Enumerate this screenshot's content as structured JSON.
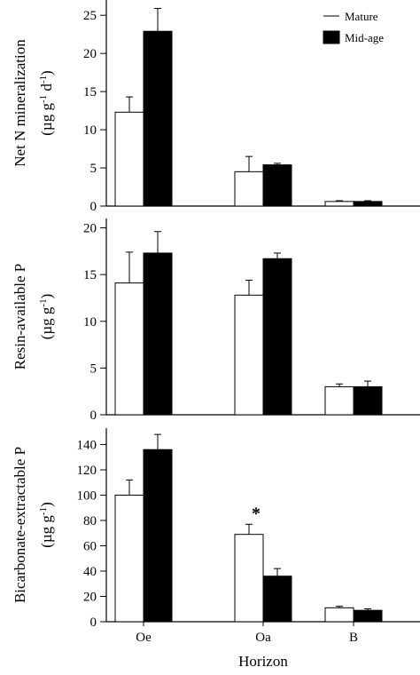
{
  "chart_data": {
    "type": "bar",
    "categories": [
      "Oe",
      "Oa",
      "B"
    ],
    "xlabel": "Horizon",
    "legend": {
      "position": "top-right",
      "entries": [
        {
          "name": "Mature",
          "fill": "#ffffff"
        },
        {
          "name": "Mid-age",
          "fill": "#000000"
        }
      ]
    },
    "panels": [
      {
        "ylabel": [
          "Net N mineralization",
          "(µg g",
          "-1",
          " d",
          "-1",
          ")"
        ],
        "ylim": [
          0,
          27
        ],
        "yticks": [
          0,
          5,
          10,
          15,
          20,
          25
        ],
        "series": [
          {
            "name": "Mature",
            "values": [
              12.3,
              4.5,
              0.6
            ],
            "errors": [
              2.0,
              2.0,
              0.1
            ]
          },
          {
            "name": "Mid-age",
            "values": [
              22.9,
              5.4,
              0.6
            ],
            "errors": [
              3.0,
              0.2,
              0.1
            ]
          }
        ],
        "significance": [
          {
            "category": "Oe",
            "label": "*"
          }
        ]
      },
      {
        "ylabel": [
          "Resin-available P",
          "(µg g",
          "-1",
          ")",
          "",
          ""
        ],
        "ylim": [
          0,
          21
        ],
        "yticks": [
          0,
          5,
          10,
          15,
          20
        ],
        "series": [
          {
            "name": "Mature",
            "values": [
              14.1,
              12.8,
              3.0
            ],
            "errors": [
              3.3,
              1.6,
              0.3
            ]
          },
          {
            "name": "Mid-age",
            "values": [
              17.3,
              16.7,
              3.0
            ],
            "errors": [
              2.3,
              0.6,
              0.6
            ]
          }
        ],
        "significance": []
      },
      {
        "ylabel": [
          "Bicarbonate-extractable P",
          "(µg g",
          "-1",
          ")",
          "",
          ""
        ],
        "ylim": [
          0,
          153
        ],
        "yticks": [
          0,
          20,
          40,
          60,
          80,
          100,
          120,
          140
        ],
        "series": [
          {
            "name": "Mature",
            "values": [
              100,
              69,
              11
            ],
            "errors": [
              12,
              8,
              1.2
            ]
          },
          {
            "name": "Mid-age",
            "values": [
              136,
              36,
              9
            ],
            "errors": [
              12,
              6,
              1.2
            ]
          }
        ],
        "significance": [
          {
            "category": "Oa",
            "label": "*"
          }
        ]
      }
    ]
  }
}
